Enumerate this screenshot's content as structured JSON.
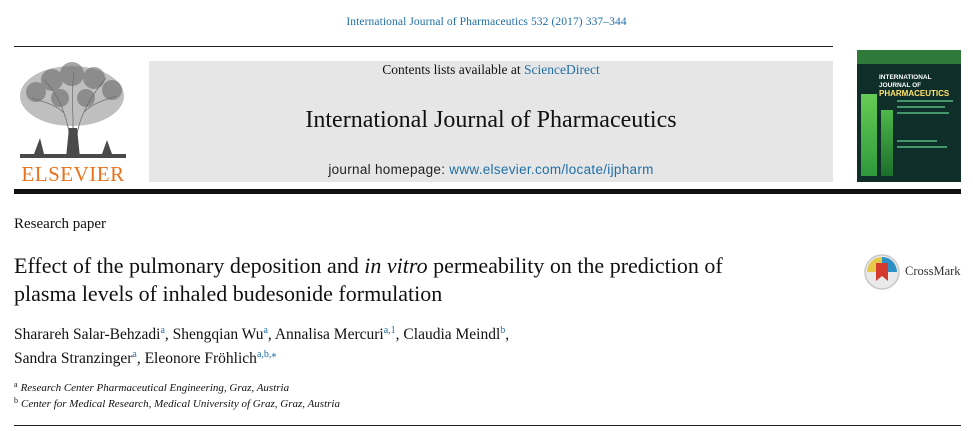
{
  "header": {
    "citation": "International Journal of Pharmaceutics 532 (2017) 337–344",
    "contents_prefix": "Contents lists available at ",
    "contents_link": "ScienceDirect",
    "journal_title": "International Journal of Pharmaceutics",
    "homepage_prefix": "journal homepage: ",
    "homepage_link": "www.elsevier.com/locate/ijpharm",
    "publisher": "ELSEVIER",
    "cover_title_small": "INTERNATIONAL JOURNAL OF",
    "cover_title_big": "PHARMACEUTICS"
  },
  "article": {
    "type": "Research paper",
    "title_part1": "Effect of the pulmonary deposition and ",
    "title_italic": "in vitro",
    "title_part2": " permeability on the prediction of plasma levels of inhaled budesonide formulation",
    "crossmark_label": "CrossMark"
  },
  "authors": [
    {
      "name": "Sharareh Salar-Behzadi",
      "sup": "a",
      "sep": ", "
    },
    {
      "name": "Shengqian Wu",
      "sup": "a",
      "sep": ", "
    },
    {
      "name": "Annalisa Mercuri",
      "sup": "a,1",
      "sep": ", "
    },
    {
      "name": "Claudia Meindl",
      "sup": "b",
      "sep": ","
    },
    {
      "name": "Sandra Stranzinger",
      "sup": "a",
      "sep": ", "
    },
    {
      "name": "Eleonore Fröhlich",
      "sup": "a,b,⁎",
      "sep": ""
    }
  ],
  "affiliations": [
    {
      "sup": "a",
      "text": "Research Center Pharmaceutical Engineering, Graz, Austria"
    },
    {
      "sup": "b",
      "text": "Center for Medical Research, Medical University of Graz, Graz, Austria"
    }
  ],
  "colors": {
    "link": "#1f6fa8",
    "elsevier_orange": "#e8731b",
    "header_band": "#e6e6e6"
  }
}
